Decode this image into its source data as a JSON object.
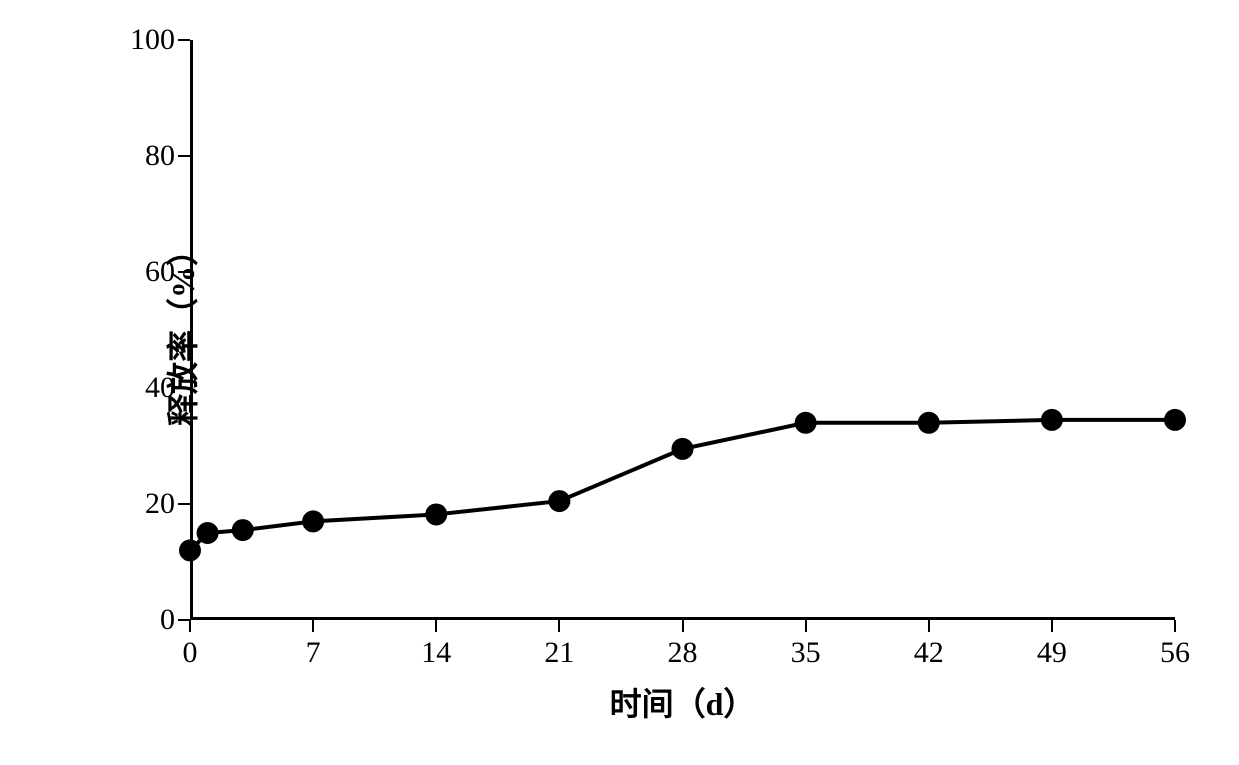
{
  "chart": {
    "type": "line",
    "xlabel": "时间（d）",
    "ylabel": "释放率（%）",
    "x_values": [
      0,
      1,
      3,
      7,
      14,
      21,
      28,
      35,
      42,
      49,
      56
    ],
    "y_values": [
      12,
      15,
      15.5,
      17,
      18.2,
      20.5,
      29.5,
      34,
      34,
      34.5,
      34.5
    ],
    "xlim": [
      0,
      56
    ],
    "ylim": [
      0,
      100
    ],
    "x_ticks": [
      0,
      7,
      14,
      21,
      28,
      35,
      42,
      49,
      56
    ],
    "y_ticks": [
      0,
      20,
      40,
      60,
      80,
      100
    ],
    "line_color": "#000000",
    "line_width": 4,
    "marker_color": "#000000",
    "marker_size": 11,
    "marker_style": "circle",
    "background_color": "#ffffff",
    "axis_color": "#000000",
    "axis_width": 3,
    "label_fontsize": 30,
    "title_fontsize": 32,
    "font_family": "SimSun, Times New Roman, serif"
  }
}
